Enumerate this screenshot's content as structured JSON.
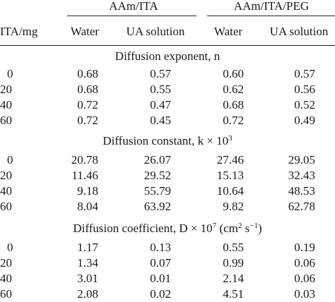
{
  "table": {
    "group_headers": [
      "AAm/ITA",
      "AAm/ITA/PEG"
    ],
    "column_headers": [
      "ITA/mg",
      "Water",
      "UA solution",
      "Water",
      "UA solution"
    ],
    "sections": [
      {
        "title": "Diffusion exponent, n",
        "rows": [
          [
            "0",
            "0.68",
            "0.57",
            "0.60",
            "0.57"
          ],
          [
            "20",
            "0.68",
            "0.55",
            "0.62",
            "0.56"
          ],
          [
            "40",
            "0.72",
            "0.47",
            "0.68",
            "0.52"
          ],
          [
            "60",
            "0.72",
            "0.45",
            "0.72",
            "0.49"
          ]
        ]
      },
      {
        "title_prefix": "Diffusion constant, k × 10",
        "title_exp": "3",
        "rows": [
          [
            "0",
            "20.78",
            "26.07",
            "27.46",
            "29.05"
          ],
          [
            "20",
            "11.46",
            "29.52",
            "15.13",
            "32.43"
          ],
          [
            "40",
            "9.18",
            "55.79",
            "10.64",
            "48.53"
          ],
          [
            "60",
            "8.04",
            "63.92",
            "9.82",
            "62.78"
          ]
        ]
      },
      {
        "title_prefix": "Diffusion coefficient, D × 10",
        "title_exp": "7",
        "title_unit_open": " (cm",
        "title_unit_exp1": "2",
        "title_unit_mid": " s",
        "title_unit_exp2": "−1",
        "title_unit_close": ")",
        "rows": [
          [
            "0",
            "1.17",
            "0.13",
            "0.55",
            "0.19"
          ],
          [
            "20",
            "1.34",
            "0.07",
            "0.99",
            "0.06"
          ],
          [
            "40",
            "3.01",
            "0.01",
            "2.14",
            "0.06"
          ],
          [
            "60",
            "2.08",
            "0.02",
            "4.51",
            "0.03"
          ]
        ]
      }
    ]
  }
}
